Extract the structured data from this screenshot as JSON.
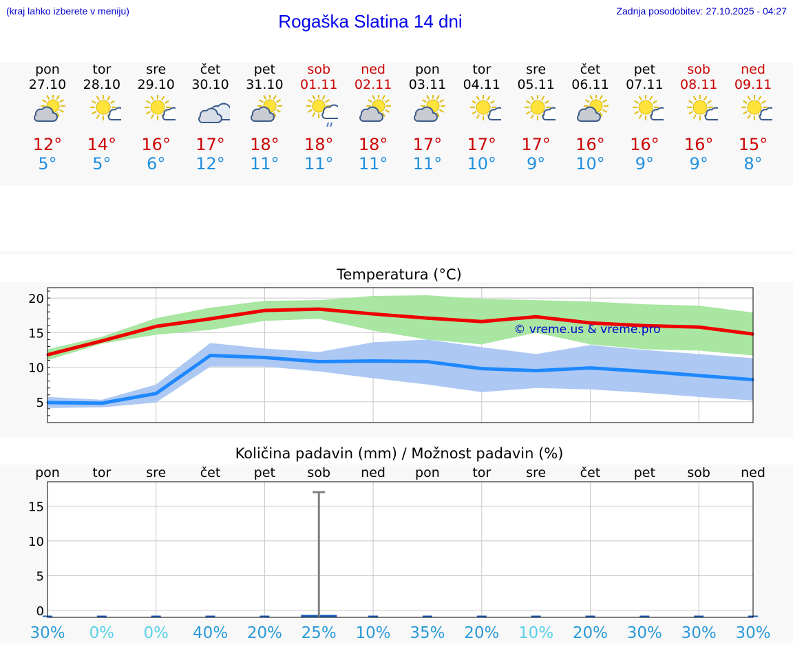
{
  "header": {
    "location_hint": "(kraj lahko izberete v meniju)",
    "title": "Rogaška Slatina 14 dni",
    "updated": "Zadnja posodobitev: 27.10.2025 - 04:27"
  },
  "days": [
    {
      "name": "pon",
      "date": "27.10",
      "weekend": false,
      "icon": "sun-cloud-icon",
      "tmax": "12°",
      "tmin": "5°"
    },
    {
      "name": "tor",
      "date": "28.10",
      "weekend": false,
      "icon": "sun-small-cloud-icon",
      "tmax": "14°",
      "tmin": "5°"
    },
    {
      "name": "sre",
      "date": "29.10",
      "weekend": false,
      "icon": "sun-small-cloud-icon",
      "tmax": "16°",
      "tmin": "6°"
    },
    {
      "name": "čet",
      "date": "30.10",
      "weekend": false,
      "icon": "cloudy-icon",
      "tmax": "17°",
      "tmin": "12°"
    },
    {
      "name": "pet",
      "date": "31.10",
      "weekend": false,
      "icon": "sun-cloud-icon",
      "tmax": "18°",
      "tmin": "11°"
    },
    {
      "name": "sob",
      "date": "01.11",
      "weekend": true,
      "icon": "sun-cloud-rain-icon",
      "tmax": "18°",
      "tmin": "11°"
    },
    {
      "name": "ned",
      "date": "02.11",
      "weekend": true,
      "icon": "sun-cloud-icon",
      "tmax": "18°",
      "tmin": "11°"
    },
    {
      "name": "pon",
      "date": "03.11",
      "weekend": false,
      "icon": "sun-cloud-icon",
      "tmax": "17°",
      "tmin": "11°"
    },
    {
      "name": "tor",
      "date": "04.11",
      "weekend": false,
      "icon": "sun-small-cloud-icon",
      "tmax": "17°",
      "tmin": "10°"
    },
    {
      "name": "sre",
      "date": "05.11",
      "weekend": false,
      "icon": "sun-small-cloud-icon",
      "tmax": "17°",
      "tmin": "9°"
    },
    {
      "name": "čet",
      "date": "06.11",
      "weekend": false,
      "icon": "sun-cloud-icon",
      "tmax": "16°",
      "tmin": "10°"
    },
    {
      "name": "pet",
      "date": "07.11",
      "weekend": false,
      "icon": "sun-small-cloud-icon",
      "tmax": "16°",
      "tmin": "9°"
    },
    {
      "name": "sob",
      "date": "08.11",
      "weekend": true,
      "icon": "sun-small-cloud-icon",
      "tmax": "16°",
      "tmin": "9°"
    },
    {
      "name": "ned",
      "date": "09.11",
      "weekend": true,
      "icon": "sun-small-cloud-icon",
      "tmax": "15°",
      "tmin": "8°"
    }
  ],
  "colors": {
    "max_line": "#ee0000",
    "max_band": "#a8e6a1",
    "min_line": "#1e88ff",
    "min_band": "#adc8f2",
    "grid": "#c8c8c8",
    "axis": "#000000",
    "precip_bar": "#1f5fbf",
    "error_bar": "#808080",
    "prob_dark": "#2a9ad8",
    "prob_light": "#5ad0e6",
    "watermark": "#0000cc"
  },
  "chart_data": [
    {
      "type": "line",
      "title": "Temperatura (°C)",
      "watermark": "© vreme.us & vreme.pro",
      "x": [
        "27.10",
        "28.10",
        "29.10",
        "30.10",
        "31.10",
        "01.11",
        "02.11",
        "03.11",
        "04.11",
        "05.11",
        "06.11",
        "07.11",
        "08.11",
        "09.11"
      ],
      "ylim": [
        2,
        21.5
      ],
      "yticks": [
        5,
        10,
        15,
        20
      ],
      "grid": true,
      "series": [
        {
          "role": "max",
          "values": [
            11.8,
            13.8,
            15.9,
            17.0,
            18.2,
            18.4,
            17.7,
            17.1,
            16.6,
            17.3,
            16.4,
            16.0,
            15.8,
            14.8
          ],
          "band_low": [
            11.0,
            13.4,
            14.7,
            15.4,
            16.7,
            17.0,
            15.3,
            14.0,
            13.3,
            15.0,
            13.3,
            12.6,
            12.4,
            11.7
          ],
          "band_high": [
            12.6,
            14.4,
            17.1,
            18.6,
            19.6,
            19.7,
            20.3,
            20.4,
            19.9,
            19.7,
            19.5,
            19.1,
            18.9,
            17.9
          ]
        },
        {
          "role": "min",
          "values": [
            4.9,
            4.8,
            6.2,
            11.7,
            11.4,
            10.8,
            10.9,
            10.8,
            9.8,
            9.5,
            9.9,
            9.4,
            8.8,
            8.2
          ],
          "band_low": [
            4.1,
            4.2,
            4.9,
            10.1,
            10.1,
            9.4,
            8.4,
            7.5,
            6.4,
            7.0,
            6.8,
            6.3,
            5.7,
            5.2
          ],
          "band_high": [
            5.7,
            5.3,
            7.5,
            13.5,
            12.7,
            12.2,
            13.6,
            14.0,
            12.9,
            11.9,
            13.2,
            12.5,
            11.9,
            11.3
          ]
        }
      ]
    },
    {
      "type": "bar",
      "title": "Količina padavin (mm) / Možnost padavin (%)",
      "categories": [
        "pon",
        "tor",
        "sre",
        "čet",
        "pet",
        "sob",
        "ned",
        "pon",
        "tor",
        "sre",
        "čet",
        "pet",
        "sob",
        "ned"
      ],
      "values": [
        0,
        0,
        0,
        0,
        0,
        0.2,
        0,
        0,
        0,
        0,
        0,
        0,
        0,
        0
      ],
      "error_high": [
        0,
        0,
        0,
        0,
        0,
        17,
        0,
        0,
        0,
        0,
        0,
        0,
        0,
        0
      ],
      "probabilities": [
        "30%",
        "0%",
        "0%",
        "40%",
        "20%",
        "25%",
        "10%",
        "35%",
        "20%",
        "10%",
        "20%",
        "30%",
        "30%",
        "30%"
      ],
      "probability_light": [
        false,
        true,
        true,
        false,
        false,
        false,
        false,
        false,
        false,
        true,
        false,
        false,
        false,
        false
      ],
      "ylim": [
        -1,
        18.5
      ],
      "yticks": [
        0,
        5,
        10,
        15
      ],
      "grid": true
    }
  ]
}
